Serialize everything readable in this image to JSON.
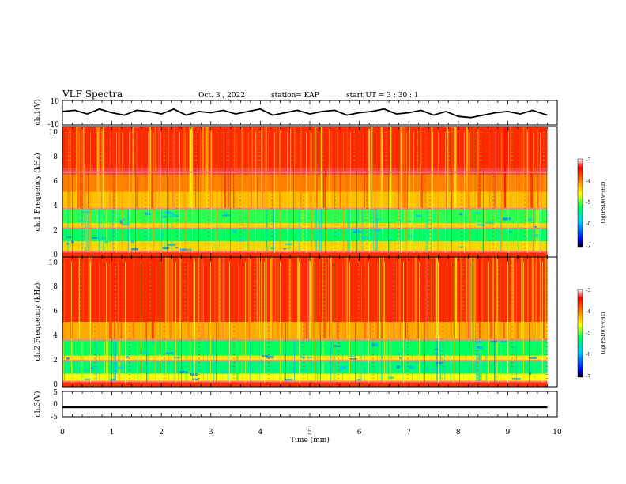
{
  "header": {
    "title": "VLF Spectra",
    "date": "Oct. 3 , 2022",
    "station": "station= KAP",
    "start": "start UT = 3 : 30 : 1"
  },
  "chart_data": [
    {
      "type": "line",
      "id": "waveform-ch1",
      "ylabel": "ch.1(V)",
      "ylim": [
        -10,
        10
      ],
      "ytick_labels": [
        "10",
        "-10"
      ],
      "xlim": [
        0,
        10
      ],
      "data_end_min": 9.8,
      "x": [
        0.0,
        0.25,
        0.5,
        0.75,
        1.0,
        1.25,
        1.5,
        1.75,
        2.0,
        2.25,
        2.5,
        2.75,
        3.0,
        3.25,
        3.5,
        3.75,
        4.0,
        4.25,
        4.5,
        4.75,
        5.0,
        5.25,
        5.5,
        5.75,
        6.0,
        6.25,
        6.5,
        6.75,
        7.0,
        7.25,
        7.5,
        7.75,
        8.0,
        8.25,
        8.5,
        8.75,
        9.0,
        9.25,
        9.5,
        9.8
      ],
      "y": [
        1,
        2,
        -1,
        3,
        0,
        -2,
        2,
        1,
        -1,
        3,
        -2,
        1,
        0,
        2,
        -1,
        1,
        3,
        -2,
        0,
        2,
        -1,
        1,
        2,
        -2,
        0,
        1,
        3,
        -1,
        0,
        2,
        -2,
        1,
        -3,
        -4,
        -2,
        0,
        1,
        -1,
        2,
        -2
      ],
      "color": "#000000"
    },
    {
      "type": "heatmap",
      "id": "spectrogram-ch1",
      "ylabel": "ch.1 Frequency (kHz)",
      "ylim": [
        0,
        10
      ],
      "ytick_labels": [
        "0",
        "2",
        "4",
        "6",
        "8",
        "10"
      ],
      "xlim": [
        0,
        10
      ],
      "data_end_min": 9.8,
      "colorbar": {
        "label": "log(PSD)(V²/Hz)",
        "range": [
          -7,
          -3
        ],
        "tick_labels": [
          "-3",
          "-4",
          "-5",
          "-6",
          "-7"
        ]
      },
      "mean_level_bands": [
        {
          "f_range": [
            0,
            0.4
          ],
          "level": -3.6
        },
        {
          "f_range": [
            0.4,
            1.2
          ],
          "level": -4.4
        },
        {
          "f_range": [
            1.2,
            2.2
          ],
          "level": -5.2
        },
        {
          "f_range": [
            2.2,
            2.6
          ],
          "level": -4.4
        },
        {
          "f_range": [
            2.6,
            3.7
          ],
          "level": -5.1
        },
        {
          "f_range": [
            3.7,
            5.0
          ],
          "level": -4.3
        },
        {
          "f_range": [
            5.0,
            6.3
          ],
          "level": -4.0
        },
        {
          "f_range": [
            6.3,
            6.8
          ],
          "level": -3.3
        },
        {
          "f_range": [
            6.8,
            10.0
          ],
          "level": -3.6
        }
      ],
      "line_features_khz": [
        0.4,
        2.2,
        3.7,
        6.5
      ]
    },
    {
      "type": "heatmap",
      "id": "spectrogram-ch2",
      "ylabel": "ch.2 Frequency (kHz)",
      "ylim": [
        0,
        10
      ],
      "ytick_labels": [
        "0",
        "2",
        "4",
        "6",
        "8",
        "10"
      ],
      "xlim": [
        0,
        10
      ],
      "data_end_min": 9.8,
      "colorbar": {
        "label": "log(PSD)(V²/Hz)",
        "range": [
          -7,
          -3
        ],
        "tick_labels": [
          "-3",
          "-4",
          "-5",
          "-6",
          "-7"
        ]
      },
      "mean_level_bands": [
        {
          "f_range": [
            0,
            0.4
          ],
          "level": -3.6
        },
        {
          "f_range": [
            0.4,
            1.0
          ],
          "level": -4.6
        },
        {
          "f_range": [
            1.0,
            2.0
          ],
          "level": -5.3
        },
        {
          "f_range": [
            2.0,
            2.4
          ],
          "level": -4.5
        },
        {
          "f_range": [
            2.4,
            3.6
          ],
          "level": -5.2
        },
        {
          "f_range": [
            3.6,
            5.0
          ],
          "level": -4.2
        },
        {
          "f_range": [
            5.0,
            10.0
          ],
          "level": -3.6
        }
      ],
      "line_features_khz": [
        0.4,
        2.0,
        3.6
      ]
    },
    {
      "type": "line",
      "id": "waveform-ch3",
      "ylabel": "ch.3(V)",
      "ylim": [
        -5,
        5
      ],
      "ytick_labels": [
        "5",
        "0",
        "-5"
      ],
      "xlim": [
        0,
        10
      ],
      "data_end_min": 9.8,
      "x": [
        0,
        9.8
      ],
      "y": [
        -1.3,
        -1.3
      ],
      "band_halfwidth": 0.35,
      "color": "#000000",
      "xlabel": "Time (min)",
      "xtick_labels": [
        "0",
        "1",
        "2",
        "3",
        "4",
        "5",
        "6",
        "7",
        "8",
        "9",
        "10"
      ]
    }
  ]
}
